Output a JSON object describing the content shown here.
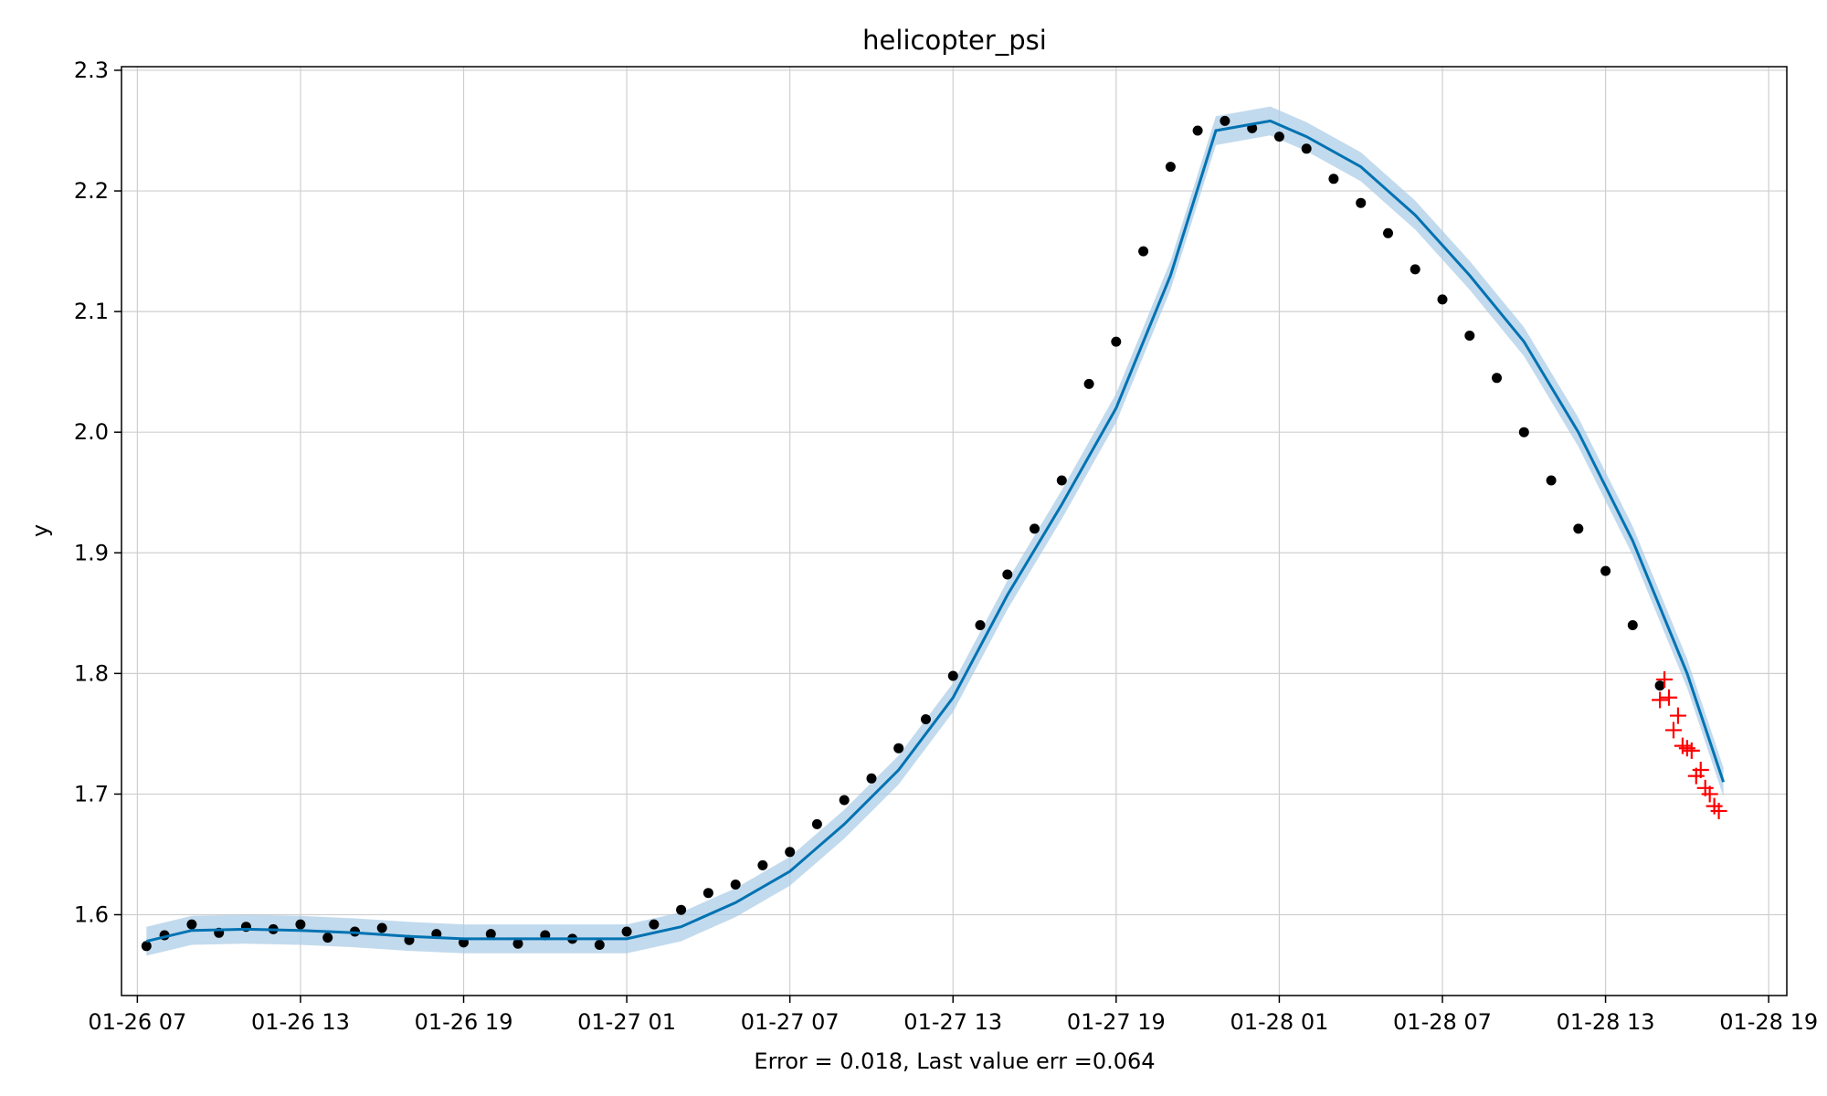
{
  "chart_data": {
    "type": "scatter",
    "title": "helicopter_psi",
    "xlabel": "Error = 0.018, Last value err =0.064",
    "ylabel": "y",
    "x_ticks": [
      "01-26 07",
      "01-26 13",
      "01-26 19",
      "01-27 01",
      "01-27 07",
      "01-27 13",
      "01-27 19",
      "01-28 01",
      "01-28 07",
      "01-28 13",
      "01-28 19"
    ],
    "y_ticks": [
      "1.6",
      "1.7",
      "1.8",
      "1.9",
      "2.0",
      "2.1",
      "2.2",
      "2.3"
    ],
    "xlim": [
      "01-26 06:25",
      "01-28 19:40"
    ],
    "ylim": [
      1.533,
      2.303
    ],
    "grid": true,
    "colors": {
      "observed": "#000000",
      "forecast": "#0072b2",
      "interval": "#a8cbe6",
      "test": "#ff0000"
    },
    "series": [
      {
        "type": "line",
        "x": [
          "01-26 07:20",
          "01-26 09:00",
          "01-26 11:00",
          "01-26 13:00",
          "01-26 15:00",
          "01-26 17:00",
          "01-26 19:00",
          "01-26 21:00",
          "01-26 23:00",
          "01-27 01:00",
          "01-27 03:00",
          "01-27 05:00",
          "01-27 07:00",
          "01-27 09:00",
          "01-27 11:00",
          "01-27 13:00",
          "01-27 15:00",
          "01-27 17:00",
          "01-27 19:00",
          "01-27 21:00",
          "01-27 22:40",
          "01-28 00:40",
          "01-28 02:00",
          "01-28 04:00",
          "01-28 06:00",
          "01-28 08:00",
          "01-28 10:00",
          "01-28 12:00",
          "01-28 14:00",
          "01-28 16:00",
          "01-28 17:20"
        ],
        "y": [
          1.578,
          1.587,
          1.588,
          1.587,
          1.585,
          1.582,
          1.58,
          1.58,
          1.58,
          1.58,
          1.59,
          1.61,
          1.636,
          1.675,
          1.72,
          1.78,
          1.865,
          1.94,
          2.02,
          2.13,
          2.25,
          2.258,
          2.245,
          2.22,
          2.18,
          2.13,
          2.075,
          2.0,
          1.91,
          1.8,
          1.71
        ],
        "interval_halfwidth": 0.012
      },
      {
        "type": "scatter",
        "x": [
          "01-26 07:20",
          "01-26 08:00",
          "01-26 09:00",
          "01-26 10:00",
          "01-26 11:00",
          "01-26 12:00",
          "01-26 13:00",
          "01-26 14:00",
          "01-26 15:00",
          "01-26 16:00",
          "01-26 17:00",
          "01-26 18:00",
          "01-26 19:00",
          "01-26 20:00",
          "01-26 21:00",
          "01-26 22:00",
          "01-26 23:00",
          "01-27 00:00",
          "01-27 01:00",
          "01-27 02:00",
          "01-27 03:00",
          "01-27 04:00",
          "01-27 05:00",
          "01-27 06:00",
          "01-27 07:00",
          "01-27 08:00",
          "01-27 09:00",
          "01-27 10:00",
          "01-27 11:00",
          "01-27 12:00",
          "01-27 13:00",
          "01-27 14:00",
          "01-27 15:00",
          "01-27 16:00",
          "01-27 17:00",
          "01-27 18:00",
          "01-27 19:00",
          "01-27 20:00",
          "01-27 21:00",
          "01-27 22:00",
          "01-27 23:00",
          "01-28 00:00",
          "01-28 01:00",
          "01-28 02:00",
          "01-28 03:00",
          "01-28 04:00",
          "01-28 05:00",
          "01-28 06:00",
          "01-28 07:00",
          "01-28 08:00",
          "01-28 09:00",
          "01-28 10:00",
          "01-28 11:00",
          "01-28 12:00",
          "01-28 13:00",
          "01-28 14:00",
          "01-28 15:00"
        ],
        "y": [
          1.574,
          1.583,
          1.592,
          1.585,
          1.59,
          1.588,
          1.592,
          1.581,
          1.586,
          1.589,
          1.579,
          1.584,
          1.577,
          1.584,
          1.576,
          1.583,
          1.58,
          1.575,
          1.586,
          1.592,
          1.604,
          1.618,
          1.625,
          1.641,
          1.652,
          1.675,
          1.695,
          1.713,
          1.738,
          1.762,
          1.798,
          1.84,
          1.882,
          1.92,
          1.96,
          2.04,
          2.075,
          2.15,
          2.22,
          2.25,
          2.258,
          2.252,
          2.245,
          2.235,
          2.21,
          2.19,
          2.165,
          2.135,
          2.11,
          2.08,
          2.045,
          2.0,
          1.96,
          1.92,
          1.885,
          1.84,
          1.79
        ]
      },
      {
        "type": "scatter",
        "marker": "+",
        "x": [
          "01-28 15:00",
          "01-28 15:10",
          "01-28 15:20",
          "01-28 15:30",
          "01-28 15:40",
          "01-28 15:50",
          "01-28 16:00",
          "01-28 16:10",
          "01-28 16:20",
          "01-28 16:30",
          "01-28 16:40",
          "01-28 16:50",
          "01-28 17:00",
          "01-28 17:10"
        ],
        "y": [
          1.778,
          1.795,
          1.78,
          1.753,
          1.765,
          1.74,
          1.738,
          1.736,
          1.715,
          1.72,
          1.705,
          1.7,
          1.69,
          1.686
        ]
      }
    ]
  }
}
